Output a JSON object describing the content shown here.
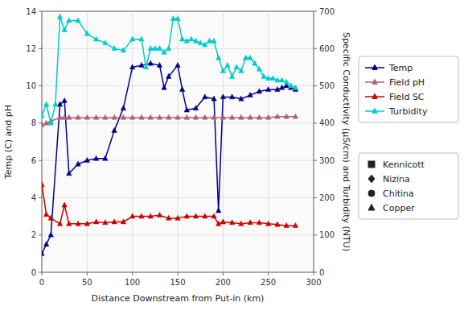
{
  "chart_data": {
    "type": "line",
    "x_label": "Distance Downstream from Put-in (km)",
    "y_label": "Temp (C) and pH",
    "y2_label": "Specific Conductivity (μS/cm) and Turbidity (NTU)",
    "xlim": [
      0,
      300
    ],
    "ylim": [
      0,
      14
    ],
    "y2lim": [
      0,
      700
    ],
    "xticks": [
      0,
      50,
      100,
      150,
      200,
      250,
      300
    ],
    "yticks": [
      0,
      2,
      4,
      6,
      8,
      10,
      12,
      14
    ],
    "y2ticks": [
      0,
      100,
      200,
      300,
      400,
      500,
      600,
      700
    ],
    "grid": true,
    "legend": "right",
    "series": [
      {
        "name": "Temp",
        "color": "#00008B",
        "axis": "y",
        "marker": "triangle",
        "x": [
          0,
          5,
          10,
          20,
          25,
          30,
          40,
          50,
          60,
          70,
          80,
          90,
          100,
          110,
          120,
          130,
          135,
          140,
          150,
          155,
          160,
          170,
          180,
          190,
          195,
          200,
          210,
          220,
          230,
          240,
          250,
          260,
          265,
          270,
          275,
          280
        ],
        "values": [
          1.0,
          1.5,
          2.0,
          9.0,
          9.2,
          5.3,
          5.8,
          6.0,
          6.1,
          6.1,
          7.6,
          8.8,
          11.0,
          11.1,
          11.2,
          11.1,
          9.9,
          10.5,
          11.1,
          9.8,
          8.7,
          8.8,
          9.4,
          9.3,
          3.3,
          9.4,
          9.4,
          9.3,
          9.5,
          9.7,
          9.8,
          9.8,
          9.9,
          10.0,
          9.9,
          9.8
        ]
      },
      {
        "name": "Field pH",
        "color": "#b06070",
        "axis": "y",
        "marker": "triangle",
        "x": [
          0,
          5,
          10,
          20,
          25,
          30,
          40,
          50,
          60,
          70,
          80,
          90,
          100,
          110,
          120,
          130,
          140,
          150,
          160,
          170,
          180,
          190,
          200,
          210,
          220,
          230,
          240,
          250,
          260,
          270,
          280
        ],
        "values": [
          7.9,
          8.0,
          8.1,
          8.3,
          8.3,
          8.3,
          8.3,
          8.3,
          8.3,
          8.3,
          8.3,
          8.3,
          8.3,
          8.3,
          8.3,
          8.3,
          8.3,
          8.3,
          8.3,
          8.3,
          8.3,
          8.3,
          8.3,
          8.3,
          8.3,
          8.3,
          8.3,
          8.3,
          8.35,
          8.35,
          8.35
        ]
      },
      {
        "name": "Field SC",
        "color": "#cc0000",
        "axis": "y2",
        "marker": "triangle",
        "x": [
          0,
          5,
          10,
          20,
          25,
          30,
          40,
          50,
          60,
          70,
          80,
          90,
          100,
          110,
          120,
          130,
          140,
          150,
          160,
          170,
          180,
          190,
          195,
          200,
          210,
          220,
          230,
          240,
          250,
          260,
          270,
          280
        ],
        "values": [
          235,
          155,
          145,
          130,
          180,
          130,
          130,
          130,
          135,
          133,
          135,
          135,
          150,
          150,
          150,
          153,
          145,
          145,
          150,
          150,
          150,
          150,
          130,
          135,
          133,
          130,
          133,
          133,
          130,
          128,
          125,
          125
        ]
      },
      {
        "name": "Turbidity",
        "color": "#00cccc",
        "axis": "y2",
        "marker": "triangle",
        "x": [
          0,
          5,
          10,
          15,
          20,
          25,
          30,
          40,
          50,
          60,
          70,
          80,
          90,
          100,
          110,
          115,
          120,
          125,
          130,
          135,
          140,
          145,
          150,
          155,
          160,
          165,
          170,
          175,
          180,
          185,
          190,
          195,
          200,
          205,
          210,
          215,
          220,
          225,
          230,
          235,
          240,
          245,
          250,
          255,
          260,
          265,
          270,
          275,
          280
        ],
        "values": [
          420,
          450,
          400,
          450,
          685,
          650,
          675,
          675,
          640,
          625,
          615,
          600,
          595,
          625,
          625,
          550,
          600,
          600,
          600,
          590,
          600,
          680,
          680,
          625,
          620,
          625,
          620,
          615,
          610,
          620,
          620,
          575,
          540,
          555,
          525,
          550,
          540,
          575,
          575,
          560,
          545,
          525,
          520,
          520,
          515,
          515,
          510,
          500,
          495
        ]
      }
    ],
    "annotations": [
      {
        "text": "Kennicott",
        "marker": "square"
      },
      {
        "text": "Nizina",
        "marker": "diamond"
      },
      {
        "text": "Chitina",
        "marker": "circle"
      },
      {
        "text": "Copper",
        "marker": "triangle"
      }
    ]
  }
}
